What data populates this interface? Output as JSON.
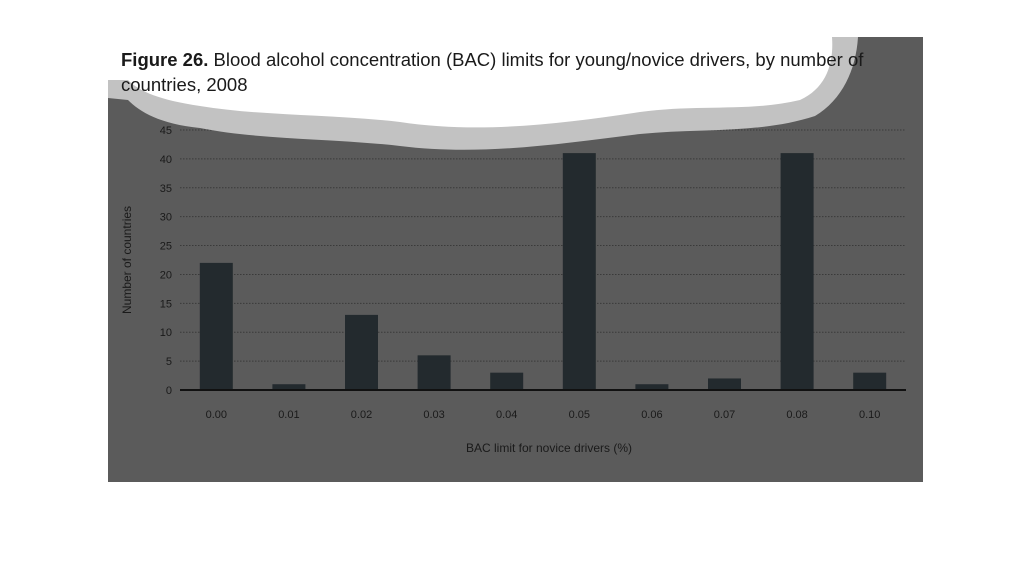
{
  "figure": {
    "label": "Figure 26.",
    "caption": " Blood alcohol concentration (BAC) limits for young/novice drivers, by number of countries, 2008"
  },
  "colors": {
    "panel": "#5b5b5b",
    "bar": "#232a2e",
    "grid": "#3a3a3a",
    "axis": "#111111"
  },
  "chart_data": {
    "type": "bar",
    "categories": [
      "0.00",
      "0.01",
      "0.02",
      "0.03",
      "0.04",
      "0.05",
      "0.06",
      "0.07",
      "0.08",
      "0.10"
    ],
    "values": [
      22,
      1,
      13,
      6,
      3,
      41,
      1,
      2,
      41,
      3
    ],
    "xlabel": "BAC limit for novice drivers (%)",
    "ylabel": "Number of countries",
    "ylim": [
      0,
      45
    ],
    "yticks": [
      0,
      5,
      10,
      15,
      20,
      25,
      30,
      35,
      40,
      45
    ],
    "grid": true
  }
}
